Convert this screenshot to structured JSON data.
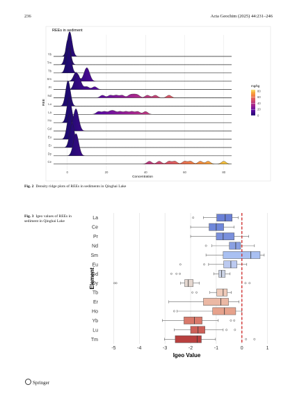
{
  "header": {
    "page": "236",
    "journal": "Acta Geochim (2025) 44:231–246"
  },
  "chart_data": [
    {
      "type": "ridgeline",
      "title": "REEs in sediment",
      "xlabel": "Concentration",
      "ylabel": "REE",
      "xlim": [
        -7,
        84
      ],
      "xticks": [
        0,
        20,
        40,
        60,
        80
      ],
      "grid": true,
      "colorbar": {
        "title": "mg/kg",
        "clim": [
          0,
          84
        ],
        "ticks": [
          0,
          20,
          40,
          60,
          80
        ],
        "colors": [
          "#1d0a6e",
          "#5b0aa0",
          "#a3248f",
          "#d6506a",
          "#f58a3f",
          "#f7d13d"
        ]
      },
      "series": [
        {
          "name": "Yb",
          "values": [
            0.8,
            1,
            1.1,
            1.2,
            1.3,
            1.5,
            1.7
          ]
        },
        {
          "name": "Tm",
          "values": [
            0.2,
            0.3,
            0.3,
            0.35,
            0.4,
            0.5
          ]
        },
        {
          "name": "Tb",
          "values": [
            0.5,
            0.6,
            0.7,
            0.8,
            0.9,
            1
          ]
        },
        {
          "name": "Sm",
          "values": [
            4,
            4.5,
            5,
            9,
            9.5,
            10,
            10.5,
            11
          ]
        },
        {
          "name": "Pr",
          "values": [
            4,
            4.5,
            5,
            5.2,
            5.5,
            6,
            7,
            10,
            14
          ]
        },
        {
          "name": "Nd",
          "values": [
            18,
            22,
            25,
            28,
            32,
            34,
            36,
            41,
            45,
            52
          ]
        },
        {
          "name": "Lu",
          "values": [
            0.3,
            0.35,
            0.4,
            0.45,
            0.5
          ]
        },
        {
          "name": "La",
          "values": [
            16,
            19,
            22,
            24,
            27,
            30,
            33,
            36,
            40
          ]
        },
        {
          "name": "Ho",
          "values": [
            0.8,
            0.9,
            1,
            1.1,
            1.2
          ]
        },
        {
          "name": "Gd",
          "values": [
            3.5,
            4,
            4.2,
            4.5,
            5,
            5.5
          ]
        },
        {
          "name": "Eu",
          "values": [
            0.9,
            1,
            1.1,
            1.2,
            1.3
          ]
        },
        {
          "name": "Er",
          "values": [
            2,
            2.3,
            2.5,
            2.7,
            3
          ]
        },
        {
          "name": "Dy",
          "values": [
            3.5,
            4,
            4.3,
            4.6,
            5,
            5.5
          ]
        },
        {
          "name": "Ce",
          "values": [
            42,
            47,
            52,
            55,
            60,
            63,
            68,
            72,
            80
          ]
        }
      ]
    },
    {
      "type": "box",
      "xlabel": "Igeo Value",
      "ylabel": "Element",
      "xlim": [
        -5.5,
        1.2
      ],
      "xticks": [
        -5,
        -4,
        -3,
        -2,
        -1,
        0,
        1
      ],
      "grid": true,
      "reference_line": {
        "value": 0,
        "color": "#cc2222"
      },
      "categories": [
        "La",
        "Ce",
        "Pr",
        "Nd",
        "Sm",
        "Eu",
        "Gd",
        "Dy",
        "Tb",
        "Er",
        "Ho",
        "Yb",
        "Lu",
        "Tm"
      ],
      "colors": [
        "#6a80d6",
        "#7088da",
        "#7a90dc",
        "#8aa0e2",
        "#a9c0f2",
        "#bccaf0",
        "#cdd4e6",
        "#e4d7d0",
        "#efcbba",
        "#ebb8a4",
        "#e6a28c",
        "#d9796b",
        "#cc6058",
        "#b8403f"
      ],
      "boxes": [
        {
          "low": -1.5,
          "q1": -0.98,
          "median": -0.65,
          "q3": -0.38,
          "high": -0.14,
          "outliers": [
            -1.9
          ]
        },
        {
          "low": -2.0,
          "q1": -1.28,
          "median": -1.0,
          "q3": -0.71,
          "high": -0.3,
          "outliers": []
        },
        {
          "low": -2.0,
          "q1": -1.0,
          "median": -0.73,
          "q3": -0.3,
          "high": 0.27,
          "outliers": []
        },
        {
          "low": -1.17,
          "q1": -0.49,
          "median": -0.24,
          "q3": -0.05,
          "high": 0.49,
          "outliers": [
            -1.4
          ]
        },
        {
          "low": -1.4,
          "q1": -0.73,
          "median": 0.35,
          "q3": 0.71,
          "high": 0.87,
          "outliers": []
        },
        {
          "low": -1.3,
          "q1": -0.71,
          "median": -0.43,
          "q3": -0.19,
          "high": 0.19,
          "outliers": [
            -2.4,
            -1.47
          ]
        },
        {
          "low": -1.1,
          "q1": -0.9,
          "median": -0.79,
          "q3": -0.65,
          "high": -0.46,
          "outliers": [
            -2.75,
            -2.55,
            -2.42
          ]
        },
        {
          "low": -2.39,
          "q1": -2.23,
          "median": -2.09,
          "q3": -1.9,
          "high": -1.66,
          "outliers": [
            -4.97,
            -4.9,
            0.14,
            0.3
          ]
        },
        {
          "low": -1.25,
          "q1": -0.98,
          "median": -0.73,
          "q3": -0.57,
          "high": -0.41,
          "outliers": [
            -1.93,
            -1.77
          ]
        },
        {
          "low": -2.85,
          "q1": -1.5,
          "median": -0.82,
          "q3": -0.52,
          "high": -0.11,
          "outliers": []
        },
        {
          "low": -2.53,
          "q1": -1.14,
          "median": -0.68,
          "q3": -0.24,
          "high": 0,
          "outliers": [
            -2.64
          ]
        },
        {
          "low": -3.1,
          "q1": -2.26,
          "median": -1.85,
          "q3": -1.55,
          "high": -0.92,
          "outliers": [
            -0.43,
            -0.3
          ]
        },
        {
          "low": -2.64,
          "q1": -2.0,
          "median": -1.71,
          "q3": -1.44,
          "high": -0.73,
          "outliers": [
            -0.6,
            -0.27
          ]
        },
        {
          "low": -3.02,
          "q1": -2.6,
          "median": -1.74,
          "q3": -1.58,
          "high": -1.03,
          "outliers": [
            0.16,
            0.49
          ]
        }
      ]
    }
  ],
  "captions": [
    {
      "label": "Fig. 2",
      "text": "Density ridge plots of REEs in sediments in Qinghai Lake"
    },
    {
      "label": "Fig. 3",
      "text": "Igeo values of REEs in sediment in Qinghai Lake"
    }
  ],
  "footer": {
    "publisher": "Springer"
  }
}
